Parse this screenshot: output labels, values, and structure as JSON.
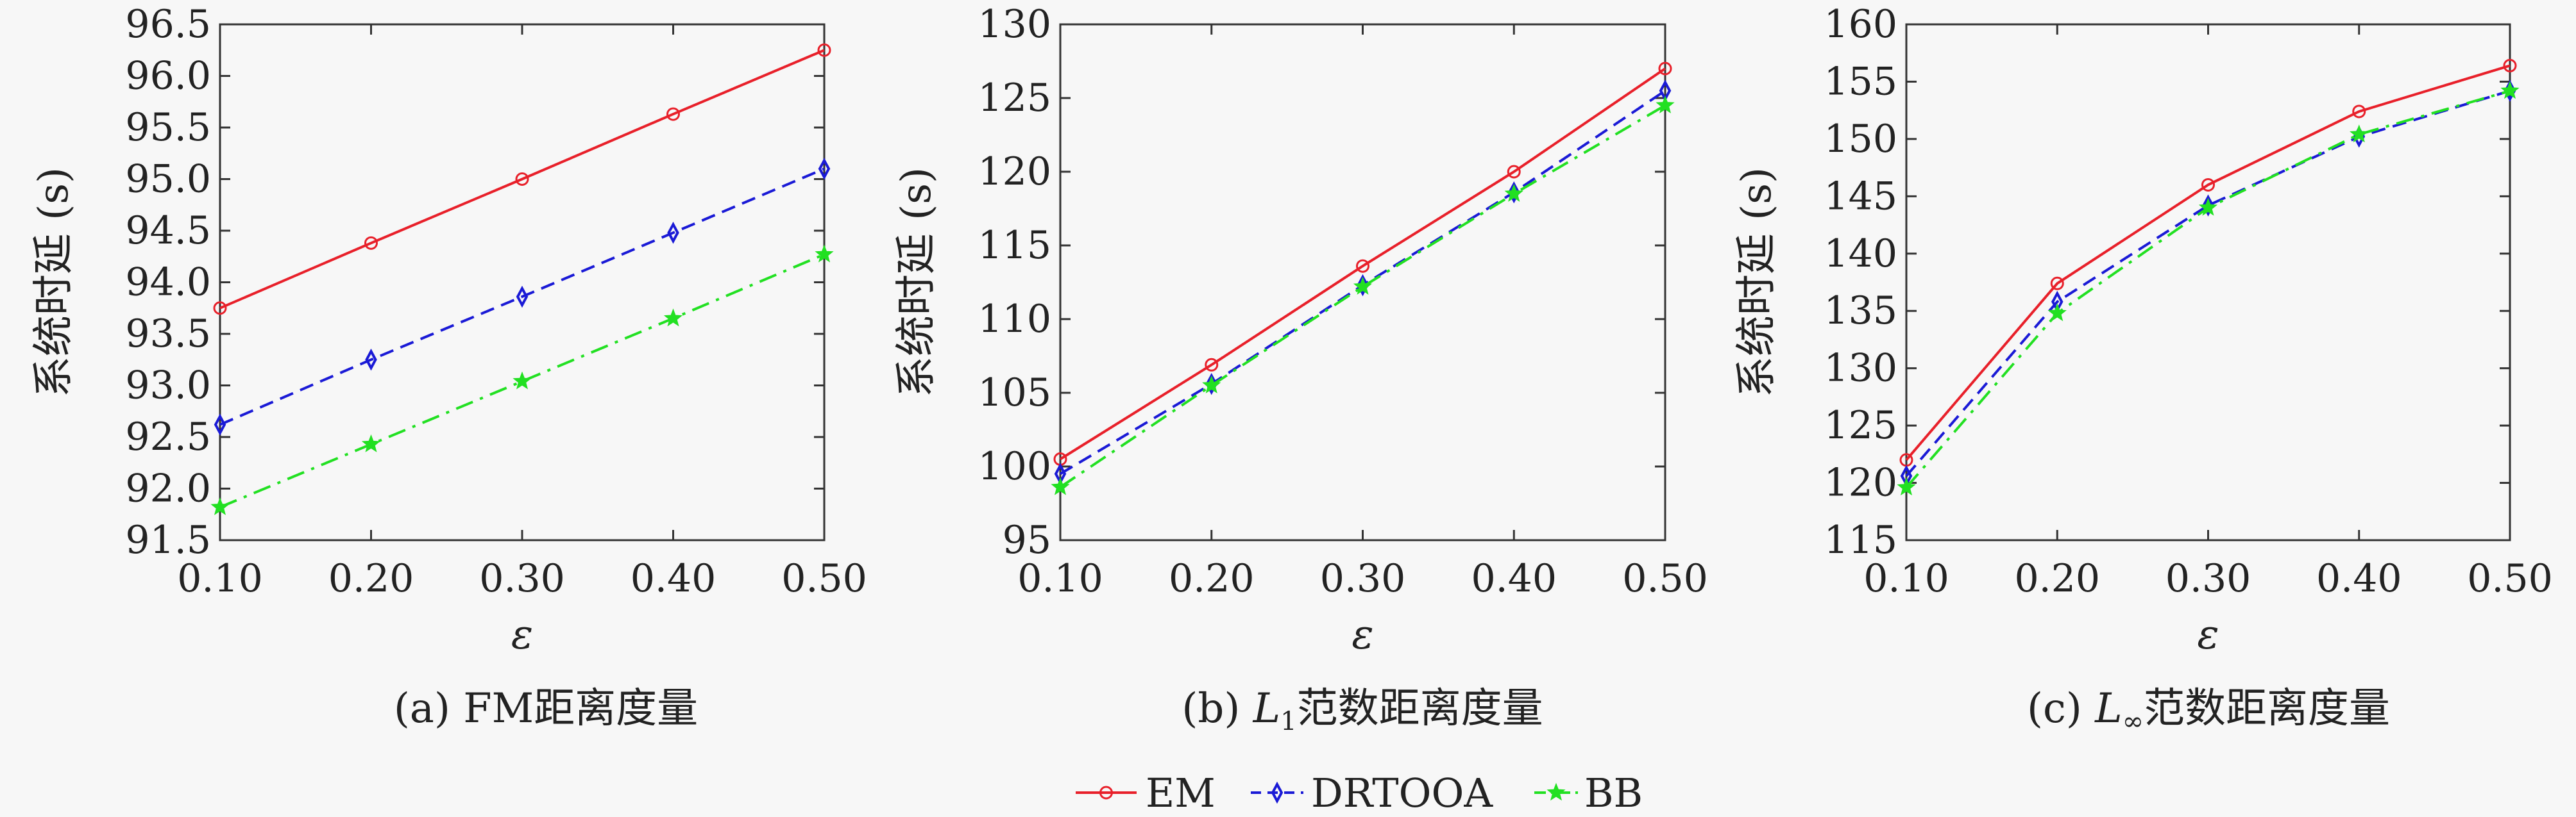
{
  "chart_data": [
    {
      "type": "line",
      "caption": "(a) FM距离度量",
      "xlabel": "ε",
      "ylabel": "系统时延 (s)",
      "x": [
        0.1,
        0.2,
        0.3,
        0.4,
        0.5
      ],
      "x_tick_labels": [
        "0.10",
        "0.20",
        "0.30",
        "0.40",
        "0.50"
      ],
      "xlim": [
        0.1,
        0.5
      ],
      "ylim": [
        91.5,
        96.5
      ],
      "y_ticks": [
        91.5,
        92.0,
        92.5,
        93.0,
        93.5,
        94.0,
        94.5,
        95.0,
        95.5,
        96.0,
        96.5
      ],
      "y_tick_labels": [
        "91.5",
        "92.0",
        "92.5",
        "93.0",
        "93.5",
        "94.0",
        "94.5",
        "95.0",
        "95.5",
        "96.0",
        "96.5"
      ],
      "series": [
        {
          "name": "EM",
          "values": [
            93.75,
            94.38,
            95.0,
            95.63,
            96.25
          ]
        },
        {
          "name": "DRTOOA",
          "values": [
            92.62,
            93.25,
            93.86,
            94.48,
            95.1
          ]
        },
        {
          "name": "BB",
          "values": [
            91.82,
            92.43,
            93.04,
            93.65,
            94.27
          ]
        }
      ]
    },
    {
      "type": "line",
      "caption_prefix": "(b) ",
      "caption_math": "L",
      "caption_sub": "1",
      "caption_suffix": "范数距离度量",
      "xlabel": "ε",
      "ylabel": "系统时延 (s)",
      "x": [
        0.1,
        0.2,
        0.3,
        0.4,
        0.5
      ],
      "x_tick_labels": [
        "0.10",
        "0.20",
        "0.30",
        "0.40",
        "0.50"
      ],
      "xlim": [
        0.1,
        0.5
      ],
      "ylim": [
        95,
        130
      ],
      "y_ticks": [
        95,
        100,
        105,
        110,
        115,
        120,
        125,
        130
      ],
      "y_tick_labels": [
        "95",
        "100",
        "105",
        "110",
        "115",
        "120",
        "125",
        "130"
      ],
      "series": [
        {
          "name": "EM",
          "values": [
            100.5,
            106.9,
            113.6,
            120.0,
            127.0
          ]
        },
        {
          "name": "DRTOOA",
          "values": [
            99.5,
            105.6,
            112.3,
            118.6,
            125.5
          ]
        },
        {
          "name": "BB",
          "values": [
            98.6,
            105.5,
            112.2,
            118.5,
            124.5
          ]
        }
      ]
    },
    {
      "type": "line",
      "caption_prefix": "(c) ",
      "caption_math": "L",
      "caption_sub": "∞",
      "caption_suffix": "范数距离度量",
      "xlabel": "ε",
      "ylabel": "系统时延 (s)",
      "x": [
        0.1,
        0.2,
        0.3,
        0.4,
        0.5
      ],
      "x_tick_labels": [
        "0.10",
        "0.20",
        "0.30",
        "0.40",
        "0.50"
      ],
      "xlim": [
        0.1,
        0.5
      ],
      "ylim": [
        115,
        160
      ],
      "y_ticks": [
        115,
        120,
        125,
        130,
        135,
        140,
        145,
        150,
        155,
        160
      ],
      "y_tick_labels": [
        "115",
        "120",
        "125",
        "130",
        "135",
        "140",
        "145",
        "150",
        "155",
        "160"
      ],
      "series": [
        {
          "name": "EM",
          "values": [
            122.0,
            137.4,
            146.0,
            152.4,
            156.4
          ]
        },
        {
          "name": "DRTOOA",
          "values": [
            120.6,
            135.8,
            144.2,
            150.2,
            154.2
          ]
        },
        {
          "name": "BB",
          "values": [
            119.6,
            134.8,
            144.0,
            150.4,
            154.2
          ]
        }
      ]
    }
  ],
  "legend": {
    "placement": "bottom-center",
    "items": [
      {
        "name": "EM",
        "color": "#e8202a",
        "marker": "circle",
        "dash": "solid"
      },
      {
        "name": "DRTOOA",
        "color": "#1a1ad6",
        "marker": "diamond",
        "dash": "dashed"
      },
      {
        "name": "BB",
        "color": "#22e022",
        "marker": "star",
        "dash": "dash-dot"
      }
    ]
  }
}
